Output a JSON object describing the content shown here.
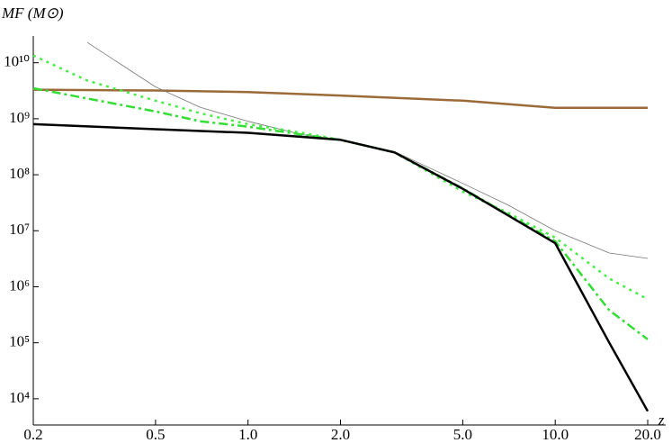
{
  "chart_data": {
    "type": "line",
    "x_label": "z",
    "y_label": "MF (M⊙)",
    "xlog": true,
    "ylog": true,
    "xlim": [
      0.2,
      20
    ],
    "xticks": [
      0.2,
      0.5,
      {
        "value": 1,
        "label": "1.0"
      },
      {
        "value": 2,
        "label": "2.0"
      },
      {
        "value": 5,
        "label": "5.0"
      },
      {
        "value": 10,
        "label": "10.0"
      },
      {
        "value": 20,
        "label": "20.0"
      }
    ],
    "ylim": [
      3400,
      30000000000
    ],
    "yticks": [
      {
        "value": 10000,
        "label": "10⁴"
      },
      {
        "value": 100000,
        "label": "10⁵"
      },
      {
        "value": 1000000,
        "label": "10⁶"
      },
      {
        "value": 10000000,
        "label": "10⁷"
      },
      {
        "value": 100000000,
        "label": "10⁸"
      },
      {
        "value": 1000000000,
        "label": "10⁹"
      },
      {
        "value": 10000000000,
        "label": "10¹⁰"
      }
    ],
    "series": [
      {
        "color": "#9c6a38",
        "width": 2.5,
        "dash": "none",
        "x": [
          0.2,
          0.5,
          1,
          2,
          5,
          10,
          20
        ],
        "values": [
          3300000000,
          3200000000,
          3000000000,
          2600000000,
          2100000000,
          1570000000,
          1570000000
        ]
      },
      {
        "color": "#777777",
        "width": 0.8,
        "dash": "none",
        "x": [
          0.3,
          0.5,
          0.7,
          1,
          1.5,
          2,
          3,
          5,
          7,
          10,
          15,
          20
        ],
        "values": [
          23000000000,
          3700000000,
          1600000000,
          900000000,
          520000000,
          420000000,
          260000000,
          70000000,
          29000000,
          10000000,
          4000000,
          3200000
        ]
      },
      {
        "color": "#44ee44",
        "width": 2.5,
        "dash": "3,5",
        "x": [
          0.2,
          0.3,
          0.5,
          0.7,
          1,
          1.5,
          2,
          3,
          5,
          7,
          10,
          15,
          20
        ],
        "values": [
          13500000000,
          4800000000,
          2100000000,
          1250000000,
          800000000,
          560000000,
          420000000,
          250000000,
          50000000,
          21000000,
          7500000,
          1400000,
          600000
        ]
      },
      {
        "color": "#33dd33",
        "width": 2.5,
        "dash": "10,4,3,4",
        "x": [
          0.2,
          0.3,
          0.5,
          0.7,
          1,
          1.5,
          2,
          3,
          5,
          7,
          10,
          15,
          20
        ],
        "values": [
          3500000000,
          2300000000,
          1350000000,
          900000000,
          720000000,
          520000000,
          420000000,
          250000000,
          57000000,
          19500000,
          6500000,
          380000,
          115000
        ]
      },
      {
        "color": "#000000",
        "width": 2.5,
        "dash": "none",
        "x": [
          0.2,
          0.5,
          1,
          2,
          3,
          5,
          7,
          10,
          15,
          20
        ],
        "values": [
          800000000,
          650000000,
          560000000,
          420000000,
          250000000,
          56000000,
          19000000,
          6000000,
          100000,
          6000
        ]
      }
    ]
  }
}
